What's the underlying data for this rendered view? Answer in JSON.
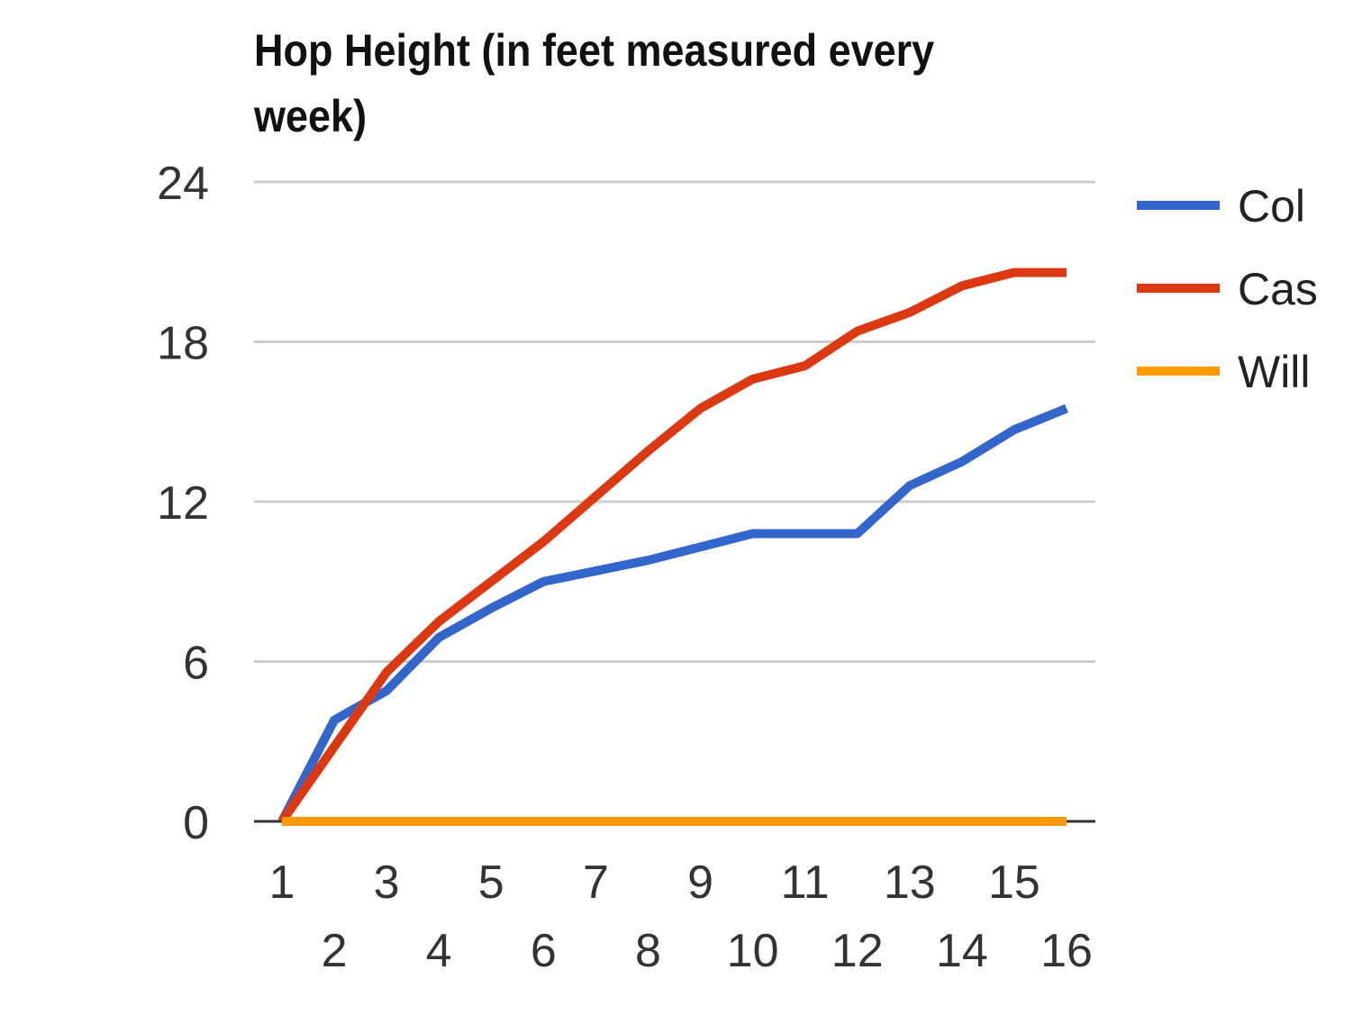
{
  "chart_data": {
    "type": "line",
    "title": "Hop Height (in feet measured every week)",
    "xlabel": "",
    "ylabel": "",
    "x": [
      1,
      2,
      3,
      4,
      5,
      6,
      7,
      8,
      9,
      10,
      11,
      12,
      13,
      14,
      15,
      16
    ],
    "x_tick_labels": [
      "1",
      "2",
      "3",
      "4",
      "5",
      "6",
      "7",
      "8",
      "9",
      "10",
      "11",
      "12",
      "13",
      "14",
      "15",
      "16"
    ],
    "ylim": [
      0,
      24
    ],
    "y_ticks": [
      0,
      6,
      12,
      18,
      24
    ],
    "grid": true,
    "legend_position": "right",
    "series": [
      {
        "name": "Col",
        "color": "#3366cc",
        "values": [
          0,
          3.8,
          4.9,
          6.9,
          8.0,
          9.0,
          9.4,
          9.8,
          10.3,
          10.8,
          10.8,
          10.8,
          12.6,
          13.5,
          14.7,
          15.5
        ]
      },
      {
        "name": "Cas",
        "color": "#dc3912",
        "values": [
          0,
          2.8,
          5.6,
          7.5,
          9.0,
          10.5,
          12.2,
          13.9,
          15.5,
          16.6,
          17.1,
          18.4,
          19.1,
          20.1,
          20.6,
          20.6
        ]
      },
      {
        "name": "Will",
        "color": "#ff9900",
        "values": [
          0,
          0,
          0,
          0,
          0,
          0,
          0,
          0,
          0,
          0,
          0,
          0,
          0,
          0,
          0,
          0
        ]
      }
    ]
  }
}
